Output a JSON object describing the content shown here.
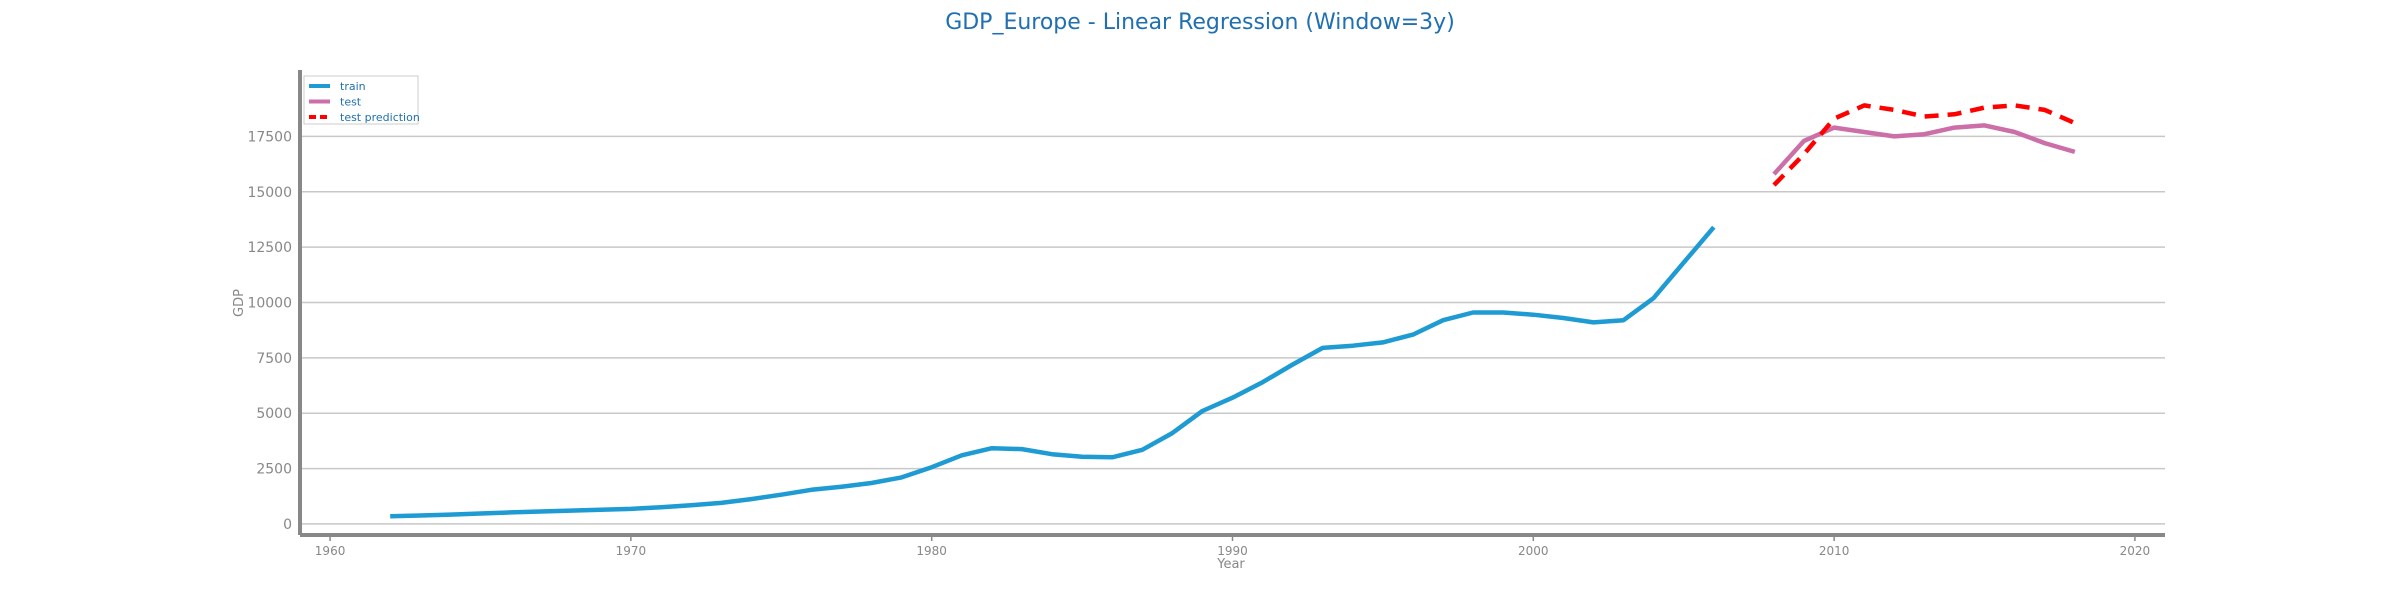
{
  "chart_data": {
    "type": "line",
    "title": "GDP_Europe - Linear Regression (Window=3y)",
    "xlabel": "Year",
    "ylabel": "GDP",
    "xlim": [
      1959,
      2021
    ],
    "ylim": [
      -500,
      20500
    ],
    "xticks": [
      1960,
      1970,
      1980,
      1990,
      2000,
      2010,
      2020
    ],
    "yticks": [
      0,
      2500,
      5000,
      7500,
      10000,
      12500,
      15000,
      17500
    ],
    "grid": "horizontal",
    "legend_position": "top-left",
    "series": [
      {
        "name": "train",
        "color": "#1f9bd4",
        "style": "solid",
        "x": [
          1962,
          1963,
          1964,
          1965,
          1966,
          1967,
          1968,
          1969,
          1970,
          1971,
          1972,
          1973,
          1974,
          1975,
          1976,
          1977,
          1978,
          1979,
          1980,
          1981,
          1982,
          1983,
          1984,
          1985,
          1986,
          1987,
          1988,
          1989,
          1990,
          1991,
          1992,
          1993,
          1994,
          1995,
          1996,
          1997,
          1998,
          1999,
          2000,
          2001,
          2002,
          2003,
          2004,
          2005,
          2006
        ],
        "y": [
          350,
          380,
          420,
          470,
          520,
          560,
          600,
          640,
          680,
          750,
          840,
          950,
          1120,
          1320,
          1540,
          1680,
          1850,
          2100,
          2560,
          3100,
          3420,
          3380,
          3150,
          3030,
          3010,
          3350,
          4100,
          5100,
          5700,
          6400,
          7200,
          7950,
          8050,
          8200,
          8550,
          9200,
          9550,
          9550,
          9450,
          9300,
          9100,
          9200,
          10200,
          11800,
          13400
        ]
      },
      {
        "name": "test",
        "color": "#cc6ea8",
        "style": "solid",
        "x": [
          2008,
          2009,
          2010,
          2011,
          2012,
          2013,
          2014,
          2015,
          2016,
          2017,
          2018
        ],
        "y": [
          15800,
          17300,
          17900,
          17700,
          17500,
          17600,
          17900,
          18000,
          17700,
          17200,
          16800
        ]
      },
      {
        "name": "test prediction",
        "color": "#ff0000",
        "style": "dashed",
        "x": [
          2008,
          2009,
          2010,
          2011,
          2012,
          2013,
          2014,
          2015,
          2016,
          2017,
          2018
        ],
        "y": [
          15300,
          16700,
          18300,
          18900,
          18700,
          18400,
          18500,
          18800,
          18900,
          18700,
          18100
        ]
      }
    ]
  }
}
